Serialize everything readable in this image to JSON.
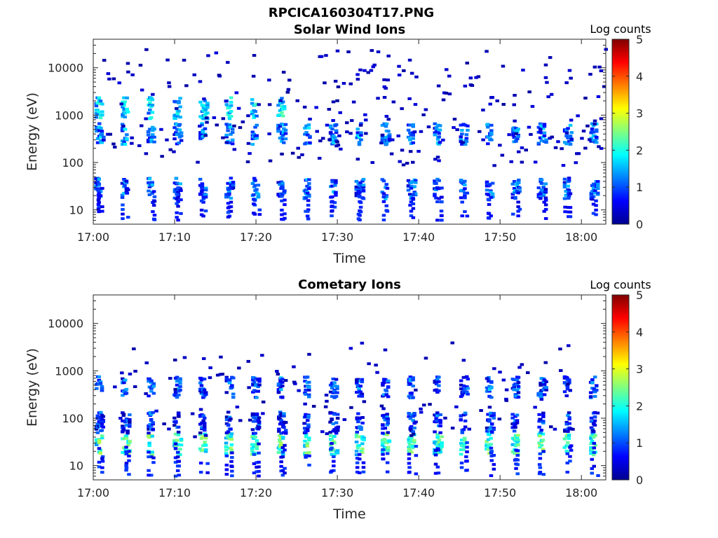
{
  "figure": {
    "title": "RPCICA160304T17.PNG"
  },
  "colorbar": {
    "label": "Log counts",
    "range": [
      0,
      5
    ],
    "ticks": [
      "0",
      "1",
      "2",
      "3",
      "4",
      "5"
    ],
    "colormap": "jet",
    "stops": [
      "#00008f",
      "#0000ff",
      "#0080ff",
      "#00ffff",
      "#80ff80",
      "#ffff00",
      "#ff8000",
      "#ff0000",
      "#800000"
    ]
  },
  "chart_data": [
    {
      "type": "heatmap",
      "title": "Solar Wind Ions",
      "xlabel": "Time",
      "ylabel": "Energy (eV)",
      "yscale": "log",
      "ylim": [
        5,
        40000
      ],
      "xlim": [
        "17:00",
        "18:03"
      ],
      "xticks": [
        "17:00",
        "17:10",
        "17:20",
        "17:30",
        "17:40",
        "17:50",
        "18:00"
      ],
      "yticks": [
        "10",
        "100",
        "1000",
        "10000"
      ],
      "sweep_period_min": 3.2,
      "bands": [
        {
          "energy_eV": 28,
          "log_counts": 1.2
        },
        {
          "energy_eV": 400,
          "log_counts": 1.3
        },
        {
          "energy_eV": 1400,
          "log_counts": 1.8
        }
      ],
      "color_range": [
        0,
        5
      ],
      "grid": false
    },
    {
      "type": "heatmap",
      "title": "Cometary Ions",
      "xlabel": "Time",
      "ylabel": "Energy (eV)",
      "yscale": "log",
      "ylim": [
        5,
        40000
      ],
      "xlim": [
        "17:00",
        "18:03"
      ],
      "xticks": [
        "17:00",
        "17:10",
        "17:20",
        "17:30",
        "17:40",
        "17:50",
        "18:00"
      ],
      "yticks": [
        "10",
        "100",
        "1000",
        "10000"
      ],
      "sweep_period_min": 3.2,
      "bands": [
        {
          "energy_eV": 28,
          "log_counts": 2.3
        },
        {
          "energy_eV": 80,
          "log_counts": 0.9
        },
        {
          "energy_eV": 450,
          "log_counts": 1.1
        }
      ],
      "color_range": [
        0,
        5
      ],
      "grid": false
    }
  ]
}
